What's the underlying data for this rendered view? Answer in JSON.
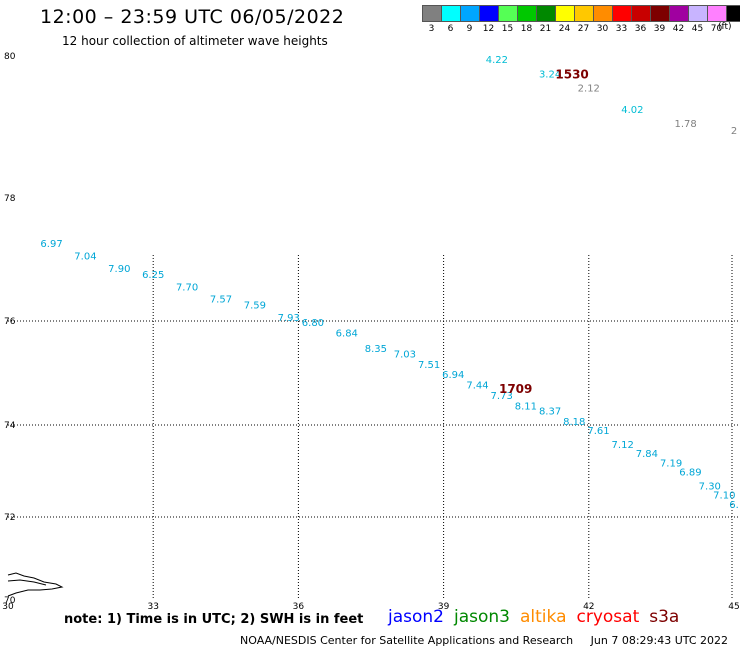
{
  "header": {
    "title": "12:00 – 23:59 UTC 06/05/2022",
    "subtitle": "12 hour collection of altimeter wave heights"
  },
  "color_scale": {
    "unit": "(ft)",
    "bins": [
      {
        "label": "3",
        "color": "#808080"
      },
      {
        "label": "6",
        "color": "#00ffff"
      },
      {
        "label": "9",
        "color": "#00a6ff"
      },
      {
        "label": "12",
        "color": "#0000ff"
      },
      {
        "label": "15",
        "color": "#55ff55"
      },
      {
        "label": "18",
        "color": "#00c800"
      },
      {
        "label": "21",
        "color": "#008800"
      },
      {
        "label": "24",
        "color": "#ffff00"
      },
      {
        "label": "27",
        "color": "#ffc800"
      },
      {
        "label": "30",
        "color": "#ff8c00"
      },
      {
        "label": "33",
        "color": "#ff0000"
      },
      {
        "label": "36",
        "color": "#c80000"
      },
      {
        "label": "39",
        "color": "#7d0000"
      },
      {
        "label": "42",
        "color": "#a000a0"
      },
      {
        "label": "45",
        "color": "#c8b4ff"
      },
      {
        "label": "70",
        "color": "#ff80ff"
      },
      {
        "label": "",
        "color": "#000000"
      }
    ]
  },
  "map": {
    "lat_labels": [
      "80",
      "78",
      "76",
      "74",
      "72",
      "70"
    ],
    "lon_labels": [
      "30",
      "33",
      "36",
      "39",
      "42",
      "45"
    ]
  },
  "passes": [
    {
      "time": "1530",
      "points": [
        {
          "lon": 40.1,
          "lat": 79.9,
          "swh": "4.22",
          "color": "#00bcd4"
        },
        {
          "lon": 41.2,
          "lat": 79.7,
          "swh": "3.24",
          "color": "#00bcd4"
        },
        {
          "lon": 42.0,
          "lat": 79.5,
          "swh": "2.12",
          "color": "#808080"
        },
        {
          "lon": 42.9,
          "lat": 79.2,
          "swh": "4.02",
          "color": "#00bcd4"
        },
        {
          "lon": 44.0,
          "lat": 79.0,
          "swh": "1.78",
          "color": "#808080"
        },
        {
          "lon": 45.0,
          "lat": 78.9,
          "swh": "2",
          "color": "#808080"
        }
      ]
    },
    {
      "time": "1709",
      "points": [
        {
          "lon": 30.9,
          "lat": 77.2,
          "swh": "6.97"
        },
        {
          "lon": 31.6,
          "lat": 77.0,
          "swh": "7.04"
        },
        {
          "lon": 32.3,
          "lat": 76.8,
          "swh": "7.90"
        },
        {
          "lon": 33.0,
          "lat": 76.7,
          "swh": "6.25"
        },
        {
          "lon": 33.7,
          "lat": 76.5,
          "swh": "7.70"
        },
        {
          "lon": 34.4,
          "lat": 76.3,
          "swh": "7.57"
        },
        {
          "lon": 35.1,
          "lat": 76.2,
          "swh": "7.59"
        },
        {
          "lon": 35.8,
          "lat": 76.0,
          "swh": "7.93"
        },
        {
          "lon": 36.3,
          "lat": 75.9,
          "swh": "6.80"
        },
        {
          "lon": 37.0,
          "lat": 75.7,
          "swh": "6.84"
        },
        {
          "lon": 37.6,
          "lat": 75.4,
          "swh": "8.35"
        },
        {
          "lon": 38.2,
          "lat": 75.3,
          "swh": "7.03"
        },
        {
          "lon": 38.7,
          "lat": 75.1,
          "swh": "7.51"
        },
        {
          "lon": 39.2,
          "lat": 74.9,
          "swh": "6.94"
        },
        {
          "lon": 39.7,
          "lat": 74.7,
          "swh": "7.44"
        },
        {
          "lon": 40.2,
          "lat": 74.5,
          "swh": "7.73"
        },
        {
          "lon": 40.7,
          "lat": 74.3,
          "swh": "8.11"
        },
        {
          "lon": 41.2,
          "lat": 74.2,
          "swh": "8.37"
        },
        {
          "lon": 41.7,
          "lat": 74.0,
          "swh": "8.18"
        },
        {
          "lon": 42.2,
          "lat": 73.8,
          "swh": "7.61"
        },
        {
          "lon": 42.7,
          "lat": 73.5,
          "swh": "7.12"
        },
        {
          "lon": 43.2,
          "lat": 73.3,
          "swh": "7.84"
        },
        {
          "lon": 43.7,
          "lat": 73.1,
          "swh": "7.19"
        },
        {
          "lon": 44.1,
          "lat": 72.9,
          "swh": "6.89"
        },
        {
          "lon": 44.5,
          "lat": 72.6,
          "swh": "7.30"
        },
        {
          "lon": 44.8,
          "lat": 72.4,
          "swh": "7.10"
        },
        {
          "lon": 45.0,
          "lat": 72.2,
          "swh": "6."
        }
      ]
    }
  ],
  "note": "note: 1) Time is in UTC; 2) SWH is in feet",
  "satellites": [
    {
      "name": "jason2",
      "color": "#0000ff"
    },
    {
      "name": "jason3",
      "color": "#008800"
    },
    {
      "name": "altika",
      "color": "#ff8c00"
    },
    {
      "name": "cryosat",
      "color": "#ff0000"
    },
    {
      "name": "s3a",
      "color": "#7d0000"
    }
  ],
  "footer": {
    "credit": "NOAA/NESDIS Center for Satellite Applications and Research",
    "timestamp": "Jun  7 08:29:43 UTC 2022"
  }
}
